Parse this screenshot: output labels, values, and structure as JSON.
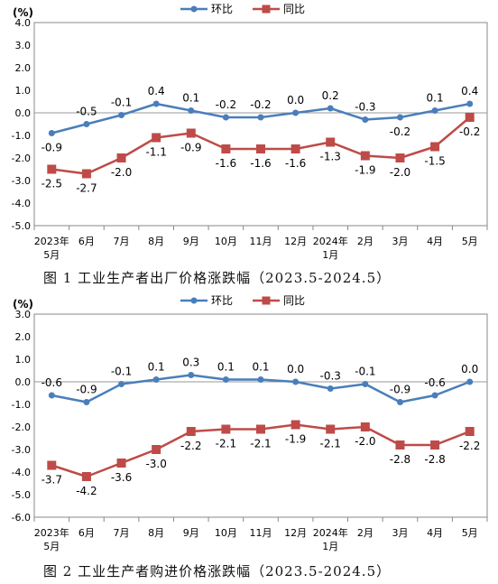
{
  "chart_data": [
    {
      "type": "line",
      "unit_label": "(%)",
      "caption": "图 1    工业生产者出厂价格涨跌幅（2023.5-2024.5）",
      "categories": [
        [
          "2023年",
          "5月"
        ],
        [
          "6月"
        ],
        [
          "7月"
        ],
        [
          "8月"
        ],
        [
          "9月"
        ],
        [
          "10月"
        ],
        [
          "11月"
        ],
        [
          "12月"
        ],
        [
          "2024年",
          "1月"
        ],
        [
          "2月"
        ],
        [
          "3月"
        ],
        [
          "4月"
        ],
        [
          "5月"
        ]
      ],
      "ylim": [
        -5.0,
        4.0
      ],
      "ytick_step": 1.0,
      "yticks": [
        "4.0",
        "3.0",
        "2.0",
        "1.0",
        "0.0",
        "-1.0",
        "-2.0",
        "-3.0",
        "-4.0",
        "-5.0"
      ],
      "legend_position": "top",
      "series": [
        {
          "name": "环比",
          "color": "#4a7ebb",
          "marker": "circle",
          "label_position": "mixed",
          "values": [
            -0.9,
            -0.5,
            -0.1,
            0.4,
            0.1,
            -0.2,
            -0.2,
            0.0,
            0.2,
            -0.3,
            -0.2,
            0.1,
            0.4
          ],
          "labels": [
            "-0.9",
            "-0.5",
            "-0.1",
            "0.4",
            "0.1",
            "-0.2",
            "-0.2",
            "0.0",
            "0.2",
            "-0.3",
            "-0.2",
            "0.1",
            "0.4"
          ]
        },
        {
          "name": "同比",
          "color": "#be4b48",
          "marker": "square",
          "label_position": "below",
          "values": [
            -2.5,
            -2.7,
            -2.0,
            -1.1,
            -0.9,
            -1.6,
            -1.6,
            -1.6,
            -1.3,
            -1.9,
            -2.0,
            -1.5,
            -0.2
          ],
          "labels": [
            "-2.5",
            "-2.7",
            "-2.0",
            "-1.1",
            "-0.9",
            "-1.6",
            "-1.6",
            "-1.6",
            "-1.3",
            "-1.9",
            "-2.0",
            "-1.5",
            "-0.2"
          ]
        }
      ]
    },
    {
      "type": "line",
      "unit_label": "(%)",
      "caption": "图 2    工业生产者购进价格涨跌幅（2023.5-2024.5）",
      "categories": [
        [
          "2023年",
          "5月"
        ],
        [
          "6月"
        ],
        [
          "7月"
        ],
        [
          "8月"
        ],
        [
          "9月"
        ],
        [
          "10月"
        ],
        [
          "11月"
        ],
        [
          "12月"
        ],
        [
          "2024年",
          "1月"
        ],
        [
          "2月"
        ],
        [
          "3月"
        ],
        [
          "4月"
        ],
        [
          "5月"
        ]
      ],
      "ylim": [
        -6.0,
        3.0
      ],
      "ytick_step": 1.0,
      "yticks": [
        "3.0",
        "2.0",
        "1.0",
        "0.0",
        "-1.0",
        "-2.0",
        "-3.0",
        "-4.0",
        "-5.0",
        "-6.0"
      ],
      "legend_position": "top",
      "series": [
        {
          "name": "环比",
          "color": "#4a7ebb",
          "marker": "circle",
          "label_position": "above",
          "values": [
            -0.6,
            -0.9,
            -0.1,
            0.1,
            0.3,
            0.1,
            0.1,
            0.0,
            -0.3,
            -0.1,
            -0.9,
            -0.6,
            0.0
          ],
          "labels": [
            "-0.6",
            "-0.9",
            "-0.1",
            "0.1",
            "0.3",
            "0.1",
            "0.1",
            "0.0",
            "-0.3",
            "-0.1",
            "-0.9",
            "-0.6",
            "0.0"
          ]
        },
        {
          "name": "同比",
          "color": "#be4b48",
          "marker": "square",
          "label_position": "below",
          "values": [
            -3.7,
            -4.2,
            -3.6,
            -3.0,
            -2.2,
            -2.1,
            -2.1,
            -1.9,
            -2.1,
            -2.0,
            -2.8,
            -2.8,
            -2.2
          ],
          "labels": [
            "-3.7",
            "-4.2",
            "-3.6",
            "-3.0",
            "-2.2",
            "-2.1",
            "-2.1",
            "-1.9",
            "-2.1",
            "-2.0",
            "-2.8",
            "-2.8",
            "-2.2"
          ]
        }
      ]
    }
  ]
}
